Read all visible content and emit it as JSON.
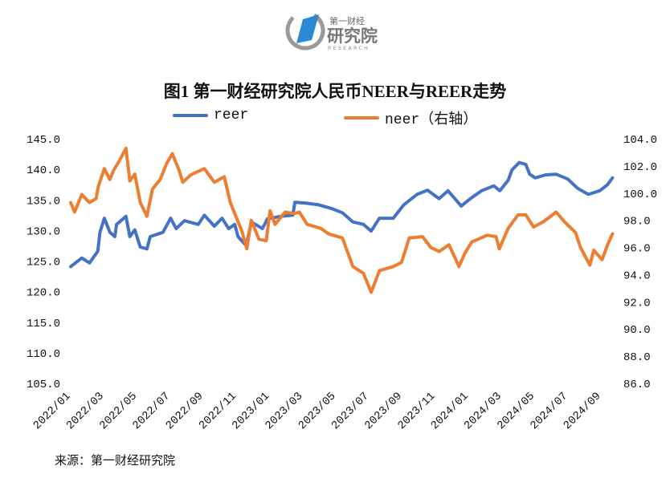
{
  "logo": {
    "text_top": "第一财经",
    "text_main": "研究院",
    "text_sub": "RESEARCH"
  },
  "source": "来源：第一财经研究院",
  "colors": {
    "reer": "#4472C4",
    "neer": "#ED7D31"
  },
  "chart_data": {
    "type": "line",
    "title": "图1 第一财经研究院人民币NEER与REER走势",
    "legend_position": "top",
    "grid": false,
    "x_ticks": [
      "2022/01",
      "2022/03",
      "2022/05",
      "2022/07",
      "2022/09",
      "2022/11",
      "2023/01",
      "2023/03",
      "2023/05",
      "2023/07",
      "2023/09",
      "2023/11",
      "2024/01",
      "2024/03",
      "2024/05",
      "2024/07",
      "2024/09"
    ],
    "y_left": {
      "range": [
        105,
        145
      ],
      "ticks": [
        "145.0",
        "140.0",
        "135.0",
        "130.0",
        "125.0",
        "120.0",
        "115.0",
        "110.0",
        "105.0"
      ]
    },
    "y_right": {
      "range": [
        86,
        104
      ],
      "ticks": [
        "104.0",
        "102.0",
        "100.0",
        "98.0",
        "96.0",
        "94.0",
        "92.0",
        "90.0",
        "88.0",
        "86.0"
      ]
    },
    "series": [
      {
        "name": "reer",
        "axis": "left",
        "points": [
          [
            "2022-01-01",
            124.1
          ],
          [
            "2022-01-21",
            125.5
          ],
          [
            "2022-02-05",
            124.7
          ],
          [
            "2022-02-20",
            126.6
          ],
          [
            "2022-02-24",
            129.7
          ],
          [
            "2022-03-02",
            132.0
          ],
          [
            "2022-03-12",
            129.7
          ],
          [
            "2022-03-21",
            129.0
          ],
          [
            "2022-03-24",
            131.0
          ],
          [
            "2022-04-11",
            132.3
          ],
          [
            "2022-04-18",
            129.0
          ],
          [
            "2022-04-27",
            130.1
          ],
          [
            "2022-05-07",
            127.3
          ],
          [
            "2022-05-19",
            127.0
          ],
          [
            "2022-05-25",
            129.0
          ],
          [
            "2022-06-18",
            129.7
          ],
          [
            "2022-07-02",
            132.0
          ],
          [
            "2022-07-12",
            130.3
          ],
          [
            "2022-07-27",
            131.6
          ],
          [
            "2022-08-22",
            131.0
          ],
          [
            "2022-09-03",
            132.5
          ],
          [
            "2022-09-21",
            130.7
          ],
          [
            "2022-10-05",
            132.0
          ],
          [
            "2022-10-17",
            130.3
          ],
          [
            "2022-10-28",
            131.0
          ],
          [
            "2022-11-04",
            129.0
          ],
          [
            "2022-11-19",
            127.5
          ],
          [
            "2022-11-28",
            131.4
          ],
          [
            "2022-12-18",
            130.3
          ],
          [
            "2022-12-27",
            131.9
          ],
          [
            "2023-01-21",
            132.3
          ],
          [
            "2023-02-13",
            132.5
          ],
          [
            "2023-02-17",
            134.6
          ],
          [
            "2023-03-05",
            134.5
          ],
          [
            "2023-03-30",
            134.2
          ],
          [
            "2023-04-23",
            133.6
          ],
          [
            "2023-05-13",
            132.9
          ],
          [
            "2023-06-02",
            131.4
          ],
          [
            "2023-06-21",
            131.0
          ],
          [
            "2023-07-05",
            129.9
          ],
          [
            "2023-07-20",
            132.0
          ],
          [
            "2023-08-15",
            132.0
          ],
          [
            "2023-09-04",
            134.2
          ],
          [
            "2023-09-28",
            135.9
          ],
          [
            "2023-10-17",
            136.6
          ],
          [
            "2023-11-08",
            135.2
          ],
          [
            "2023-11-24",
            136.5
          ],
          [
            "2023-12-18",
            134.0
          ],
          [
            "2024-01-06",
            135.3
          ],
          [
            "2024-01-25",
            136.5
          ],
          [
            "2024-02-17",
            137.3
          ],
          [
            "2024-02-28",
            136.5
          ],
          [
            "2024-03-13",
            138.2
          ],
          [
            "2024-03-20",
            139.9
          ],
          [
            "2024-04-03",
            141.1
          ],
          [
            "2024-04-15",
            140.8
          ],
          [
            "2024-04-22",
            139.2
          ],
          [
            "2024-05-02",
            138.6
          ],
          [
            "2024-05-21",
            139.1
          ],
          [
            "2024-06-10",
            139.2
          ],
          [
            "2024-07-01",
            138.4
          ],
          [
            "2024-07-19",
            136.9
          ],
          [
            "2024-08-08",
            135.9
          ],
          [
            "2024-08-29",
            136.5
          ],
          [
            "2024-09-13",
            137.5
          ],
          [
            "2024-09-22",
            138.6
          ]
        ]
      },
      {
        "name": "neer（右轴）",
        "axis": "right",
        "points": [
          [
            "2022-01-01",
            99.3
          ],
          [
            "2022-01-08",
            98.6
          ],
          [
            "2022-01-21",
            99.9
          ],
          [
            "2022-02-05",
            99.3
          ],
          [
            "2022-02-17",
            99.6
          ],
          [
            "2022-02-21",
            100.5
          ],
          [
            "2022-03-02",
            101.8
          ],
          [
            "2022-03-12",
            101.0
          ],
          [
            "2022-03-19",
            101.7
          ],
          [
            "2022-03-28",
            102.3
          ],
          [
            "2022-04-11",
            103.3
          ],
          [
            "2022-04-18",
            100.9
          ],
          [
            "2022-04-27",
            101.4
          ],
          [
            "2022-05-07",
            99.3
          ],
          [
            "2022-05-19",
            98.3
          ],
          [
            "2022-05-29",
            100.3
          ],
          [
            "2022-06-13",
            101.0
          ],
          [
            "2022-06-25",
            102.2
          ],
          [
            "2022-07-05",
            102.9
          ],
          [
            "2022-07-17",
            101.7
          ],
          [
            "2022-07-24",
            100.8
          ],
          [
            "2022-08-07",
            101.3
          ],
          [
            "2022-08-16",
            101.5
          ],
          [
            "2022-09-03",
            101.8
          ],
          [
            "2022-09-21",
            100.8
          ],
          [
            "2022-10-09",
            101.2
          ],
          [
            "2022-10-20",
            99.3
          ],
          [
            "2022-10-28",
            98.5
          ],
          [
            "2022-11-11",
            97.2
          ],
          [
            "2022-11-20",
            95.9
          ],
          [
            "2022-11-28",
            98.0
          ],
          [
            "2022-12-12",
            96.6
          ],
          [
            "2022-12-25",
            96.5
          ],
          [
            "2023-01-02",
            98.7
          ],
          [
            "2023-01-11",
            97.7
          ],
          [
            "2023-01-29",
            98.6
          ],
          [
            "2023-02-16",
            98.5
          ],
          [
            "2023-02-25",
            98.6
          ],
          [
            "2023-03-09",
            97.7
          ],
          [
            "2023-04-04",
            97.4
          ],
          [
            "2023-04-18",
            97.0
          ],
          [
            "2023-05-13",
            96.7
          ],
          [
            "2023-05-22",
            95.7
          ],
          [
            "2023-06-02",
            94.6
          ],
          [
            "2023-06-21",
            94.1
          ],
          [
            "2023-07-05",
            92.7
          ],
          [
            "2023-07-20",
            94.3
          ],
          [
            "2023-08-15",
            94.6
          ],
          [
            "2023-08-30",
            94.9
          ],
          [
            "2023-09-14",
            96.7
          ],
          [
            "2023-10-08",
            96.8
          ],
          [
            "2023-10-23",
            96.0
          ],
          [
            "2023-11-08",
            95.7
          ],
          [
            "2023-11-26",
            96.2
          ],
          [
            "2023-12-14",
            94.6
          ],
          [
            "2023-12-25",
            95.6
          ],
          [
            "2024-01-07",
            96.4
          ],
          [
            "2024-02-05",
            96.9
          ],
          [
            "2024-02-21",
            96.8
          ],
          [
            "2024-02-27",
            95.9
          ],
          [
            "2024-03-13",
            97.4
          ],
          [
            "2024-04-01",
            98.4
          ],
          [
            "2024-04-15",
            98.4
          ],
          [
            "2024-04-29",
            97.5
          ],
          [
            "2024-05-17",
            97.9
          ],
          [
            "2024-06-10",
            98.6
          ],
          [
            "2024-06-25",
            97.9
          ],
          [
            "2024-07-15",
            97.1
          ],
          [
            "2024-07-24",
            96.0
          ],
          [
            "2024-08-11",
            94.7
          ],
          [
            "2024-08-18",
            95.8
          ],
          [
            "2024-09-03",
            95.1
          ],
          [
            "2024-09-13",
            96.2
          ],
          [
            "2024-09-22",
            97.0
          ]
        ]
      }
    ]
  }
}
